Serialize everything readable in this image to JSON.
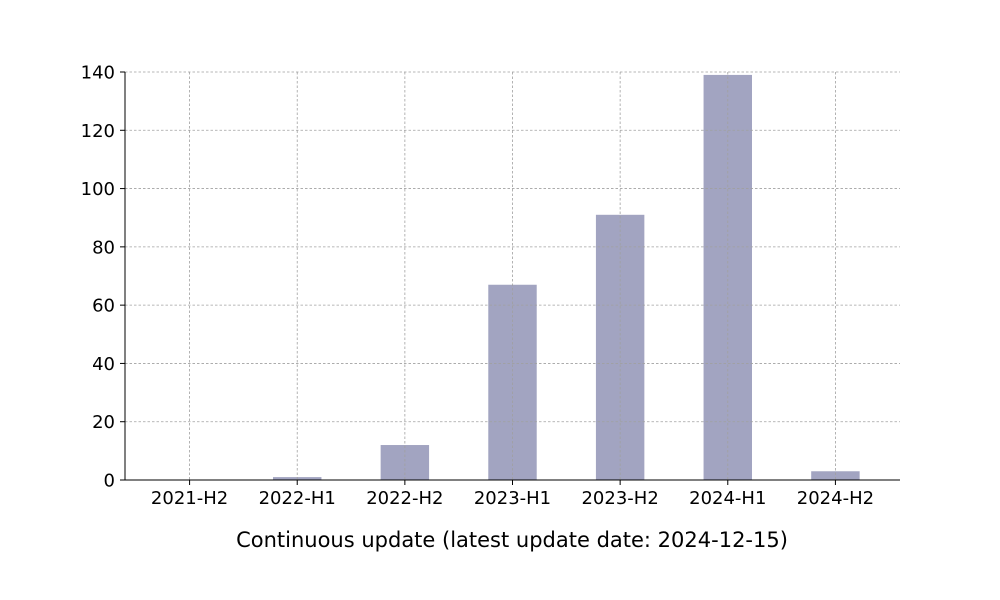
{
  "chart_data": {
    "type": "bar",
    "categories": [
      "2021-H2",
      "2022-H1",
      "2022-H2",
      "2023-H1",
      "2023-H2",
      "2024-H1",
      "2024-H2"
    ],
    "values": [
      0,
      1,
      12,
      67,
      91,
      139,
      3
    ],
    "xlabel": "Continuous update (latest update date: 2024-12-15)",
    "ylabel": "",
    "ylim": [
      0,
      140
    ],
    "yticks": [
      0,
      20,
      40,
      60,
      80,
      100,
      120,
      140
    ],
    "grid": true,
    "bar_color": "#a2a4c1",
    "legend": "none"
  }
}
